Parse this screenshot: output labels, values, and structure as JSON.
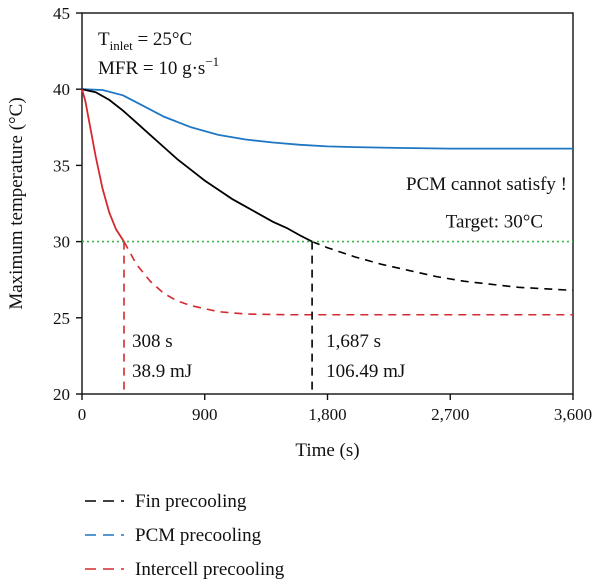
{
  "chart_data": {
    "type": "line",
    "xlabel": "Time (s)",
    "ylabel": "Maximum temperature (°C)",
    "xlim": [
      0,
      3600
    ],
    "ylim": [
      20,
      45
    ],
    "xticks": [
      0,
      900,
      1800,
      2700,
      3600
    ],
    "xtick_labels": [
      "0",
      "900",
      "1,800",
      "2,700",
      "3,600"
    ],
    "yticks": [
      20,
      25,
      30,
      35,
      40,
      45
    ],
    "ytick_labels": [
      "20",
      "25",
      "30",
      "35",
      "40",
      "45"
    ],
    "grid": false,
    "legend_position": "bottom",
    "conditions": {
      "t_inlet_main": "T",
      "t_inlet_sub": "inlet",
      "t_inlet_value": " = 25°C",
      "mfr_main": "MFR = 10 g·s",
      "mfr_sup": "−1"
    },
    "target": {
      "value": 30,
      "label": "Target: 30°C",
      "color": "#3cb54a"
    },
    "annotations": {
      "pcm_note": "PCM cannot satisfy !",
      "fin_time": "1,687 s",
      "fin_energy": "106.49 mJ",
      "intercell_time": "308 s",
      "intercell_energy": "38.9 mJ"
    },
    "markers": {
      "fin_x": 1687,
      "intercell_x": 308
    },
    "series": [
      {
        "name": "Fin precooling",
        "color": "#000000",
        "x": [
          0,
          100,
          200,
          300,
          400,
          500,
          600,
          700,
          800,
          900,
          1000,
          1100,
          1200,
          1300,
          1400,
          1500,
          1600,
          1687,
          1800,
          2000,
          2200,
          2400,
          2600,
          2800,
          3000,
          3200,
          3400,
          3600
        ],
        "y": [
          40.0,
          39.8,
          39.3,
          38.6,
          37.8,
          37.0,
          36.2,
          35.4,
          34.7,
          34.0,
          33.4,
          32.8,
          32.3,
          31.8,
          31.3,
          30.9,
          30.4,
          30.0,
          29.6,
          29.0,
          28.5,
          28.1,
          27.7,
          27.4,
          27.2,
          27.0,
          26.9,
          26.8
        ]
      },
      {
        "name": "PCM precooling",
        "color": "#1f77c4",
        "x": [
          0,
          150,
          300,
          450,
          600,
          800,
          1000,
          1200,
          1400,
          1600,
          1800,
          2000,
          2300,
          2700,
          3100,
          3600
        ],
        "y": [
          40.0,
          39.95,
          39.6,
          38.9,
          38.2,
          37.5,
          37.0,
          36.7,
          36.5,
          36.35,
          36.25,
          36.2,
          36.15,
          36.1,
          36.1,
          36.1
        ]
      },
      {
        "name": "Intercell precooling",
        "color": "#d42a2f",
        "x": [
          0,
          25,
          50,
          100,
          150,
          200,
          250,
          308,
          400,
          500,
          600,
          700,
          800,
          1000,
          1200,
          1500,
          1800,
          2400,
          3000,
          3600
        ],
        "y": [
          40.0,
          39.2,
          38.0,
          35.6,
          33.5,
          31.9,
          30.8,
          30.0,
          28.5,
          27.4,
          26.6,
          26.1,
          25.8,
          25.4,
          25.25,
          25.2,
          25.2,
          25.2,
          25.2,
          25.2
        ]
      }
    ]
  }
}
